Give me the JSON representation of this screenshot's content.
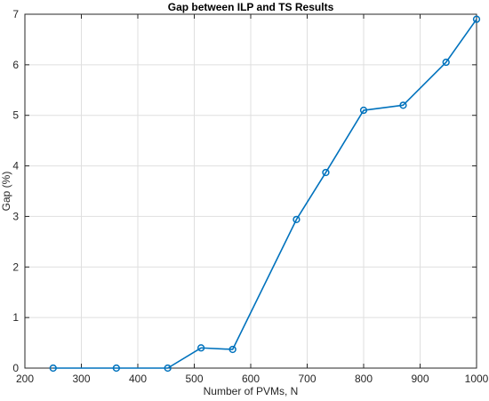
{
  "chart_data": {
    "type": "line",
    "title": "Gap between ILP and TS Results",
    "xlabel": "Number of PVMs, N",
    "ylabel": "Gap (%)",
    "xlim": [
      200,
      1000
    ],
    "ylim": [
      0,
      7
    ],
    "xticks": [
      200,
      300,
      400,
      500,
      600,
      700,
      800,
      900,
      1000
    ],
    "yticks": [
      0,
      1,
      2,
      3,
      4,
      5,
      6,
      7
    ],
    "grid": true,
    "marker": "circle",
    "line_color": "#0072bd",
    "series": [
      {
        "x": [
          250,
          362,
          453,
          512,
          568,
          681,
          733,
          800,
          870,
          946,
          1000
        ],
        "y": [
          0,
          0,
          0,
          0.4,
          0.37,
          2.94,
          3.87,
          5.1,
          5.2,
          6.05,
          6.9
        ]
      }
    ]
  }
}
